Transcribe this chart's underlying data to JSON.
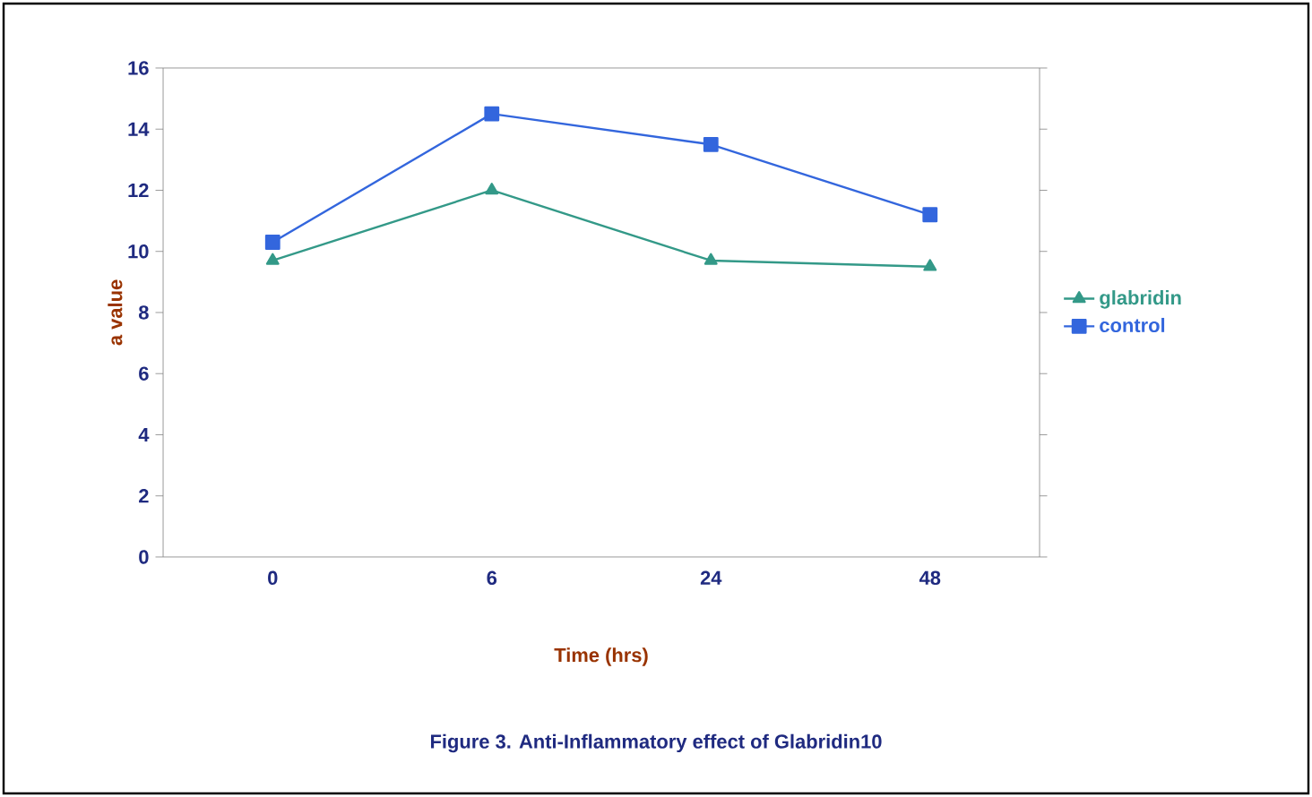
{
  "chart_data": {
    "type": "line",
    "xlabel": "Time (hrs)",
    "ylabel": "a value",
    "categories": [
      "0",
      "6",
      "24",
      "48"
    ],
    "series": [
      {
        "name": "glabridin",
        "color": "#339988",
        "marker": "triangle",
        "values": [
          9.7,
          12.0,
          9.7,
          9.5
        ]
      },
      {
        "name": "control",
        "color": "#3366dd",
        "marker": "square",
        "values": [
          10.3,
          14.5,
          13.5,
          11.2
        ]
      }
    ],
    "ylim": [
      0,
      16
    ],
    "yticks": [
      0,
      2,
      4,
      6,
      8,
      10,
      12,
      14,
      16
    ],
    "legend": "right",
    "grid": false,
    "annotations": [
      "Figure 3.  Anti-Inflammatory effect of Glabridin10"
    ]
  }
}
